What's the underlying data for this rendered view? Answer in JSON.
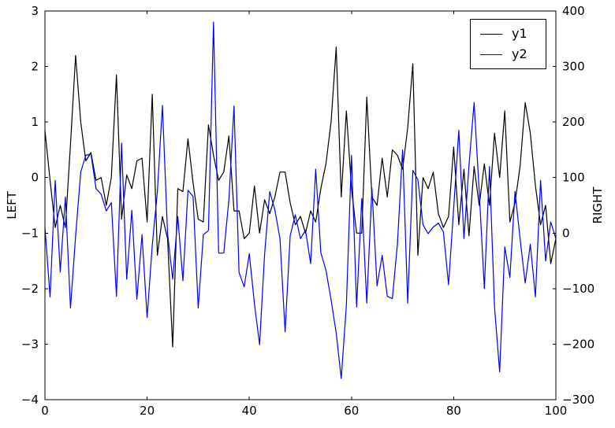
{
  "chart_data": {
    "type": "line",
    "title": "",
    "x_start": 0,
    "x_step": 1,
    "axes": {
      "x": {
        "min": 0,
        "max": 100,
        "tick_values": [
          0,
          20,
          40,
          60,
          80,
          100
        ],
        "tick_labels": [
          "0",
          "20",
          "40",
          "60",
          "80",
          "100"
        ]
      },
      "y_left": {
        "label": "LEFT",
        "min": -4,
        "max": 3,
        "tick_values": [
          3,
          2,
          1,
          0,
          -1,
          -2,
          -3,
          -4
        ],
        "tick_labels": [
          "3",
          "2",
          "1",
          "0",
          "−1",
          "−2",
          "−3",
          "−4"
        ]
      },
      "y_right": {
        "label": "RIGHT",
        "min": -300,
        "max": 400,
        "tick_values": [
          400,
          300,
          200,
          100,
          0,
          -100,
          -200,
          -300
        ],
        "tick_labels": [
          "400",
          "300",
          "200",
          "100",
          "0",
          "−100",
          "−200",
          "−300"
        ]
      }
    },
    "grid": false,
    "legend": {
      "position": "upper right",
      "entries": [
        {
          "label": "y1",
          "color": "#000000"
        },
        {
          "label": "y2",
          "color": "#0000ff"
        }
      ]
    },
    "series": [
      {
        "name": "y1",
        "axis": "y_left",
        "color": "#000000",
        "values": [
          0.85,
          -0.05,
          -0.9,
          -0.5,
          -0.9,
          0.6,
          2.2,
          1.0,
          0.3,
          0.45,
          -0.05,
          0.0,
          -0.5,
          0.0,
          1.85,
          -0.75,
          0.05,
          -0.2,
          0.3,
          0.35,
          -0.8,
          1.5,
          -1.4,
          -0.7,
          -1.1,
          -3.05,
          -0.2,
          -0.25,
          0.7,
          -0.1,
          -0.75,
          -0.8,
          0.95,
          0.4,
          -0.05,
          0.1,
          0.75,
          -0.6,
          -0.6,
          -1.1,
          -1.0,
          -0.15,
          -1.0,
          -0.4,
          -0.65,
          -0.35,
          0.1,
          0.1,
          -0.45,
          -0.85,
          -0.7,
          -1.0,
          -0.6,
          -0.8,
          -0.2,
          0.25,
          1.0,
          2.35,
          -0.35,
          1.2,
          -0.2,
          -1.0,
          -1.0,
          1.45,
          -0.35,
          -0.5,
          0.35,
          -0.35,
          0.5,
          0.4,
          0.15,
          0.9,
          2.05,
          -1.4,
          0.0,
          -0.2,
          0.1,
          -0.65,
          -0.9,
          -0.7,
          0.55,
          -0.85,
          0.15,
          -1.05,
          0.2,
          -0.5,
          0.25,
          -0.5,
          0.8,
          0.0,
          1.2,
          -0.8,
          -0.45,
          0.2,
          1.35,
          0.8,
          -0.15,
          -0.85,
          -0.5,
          -1.55,
          -1.1
        ]
      },
      {
        "name": "y2",
        "axis": "y_right",
        "color": "#0000ff",
        "values": [
          10,
          -115,
          95,
          -70,
          65,
          -135,
          -5,
          110,
          140,
          143,
          80,
          70,
          40,
          55,
          -114,
          162,
          -83,
          41,
          -119,
          -3,
          -152,
          -22,
          75,
          230,
          0,
          -83,
          30,
          -86,
          77,
          66,
          -135,
          -3,
          5,
          380,
          -36,
          -36,
          60,
          229,
          -71,
          -97,
          -37,
          -127,
          -201,
          -38,
          75,
          42,
          -10,
          -178,
          -5,
          33,
          -10,
          5,
          -55,
          115,
          -35,
          -67,
          -120,
          -180,
          -262,
          -130,
          140,
          -133,
          62,
          -126,
          81,
          -95,
          -40,
          -114,
          -118,
          -19,
          150,
          -126,
          113,
          96,
          15,
          -1,
          11,
          18,
          2,
          -93,
          45,
          185,
          -10,
          122,
          235,
          75,
          -100,
          120,
          -133,
          -250,
          -25,
          -80,
          75,
          -10,
          -90,
          -20,
          -115,
          95,
          -50,
          20,
          -10
        ]
      }
    ]
  }
}
